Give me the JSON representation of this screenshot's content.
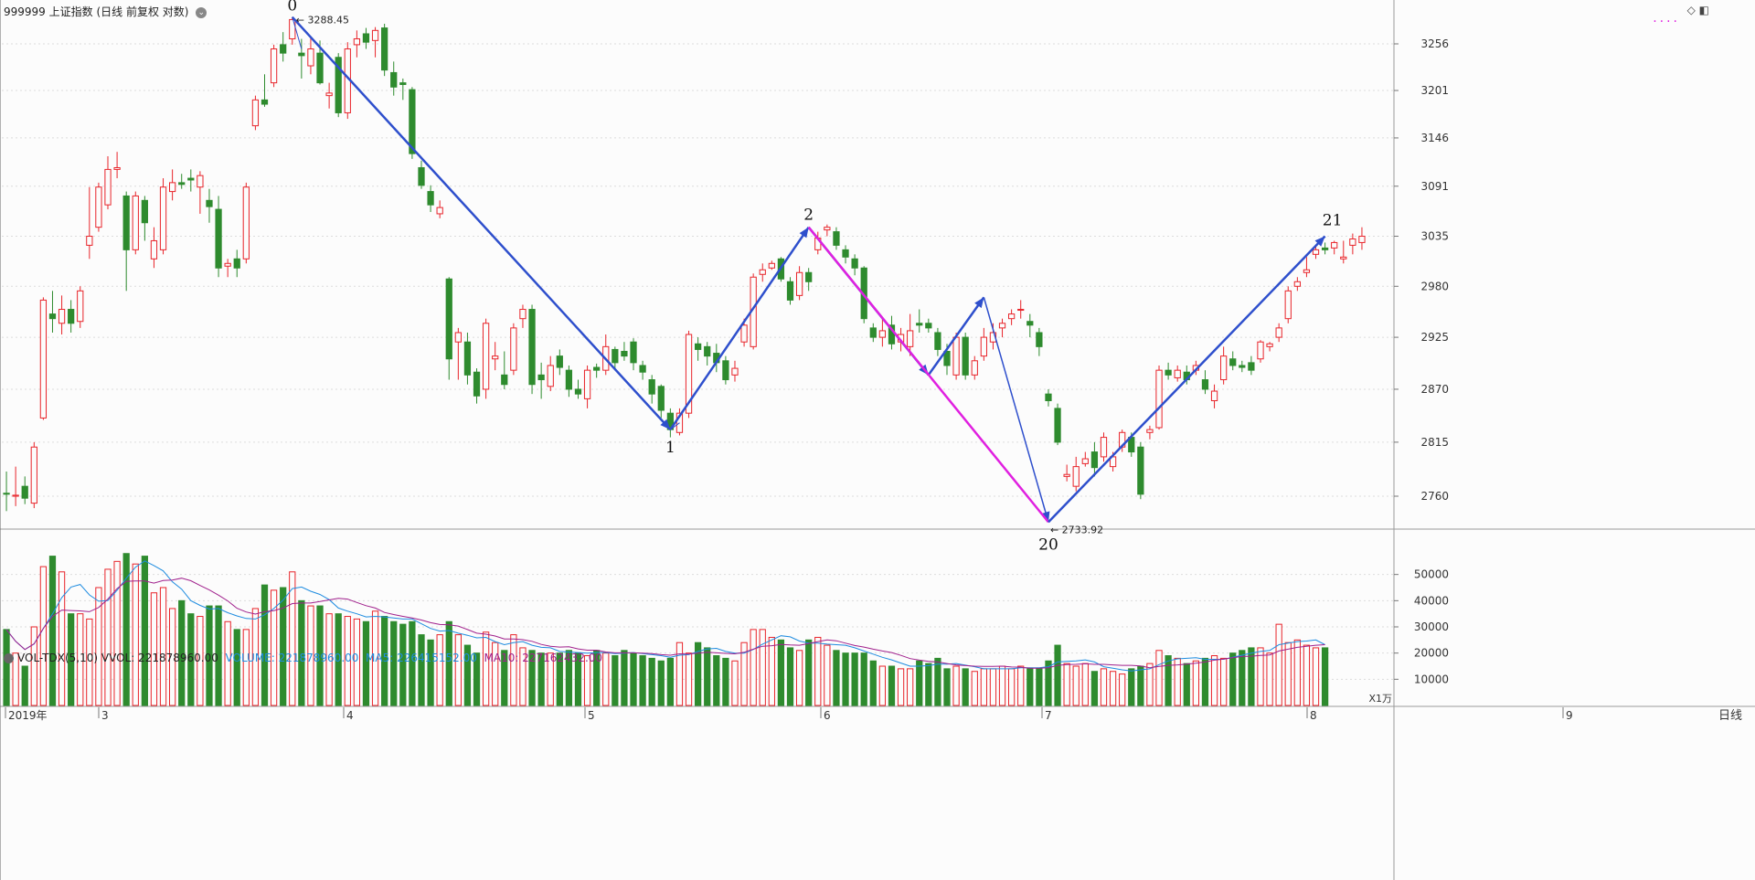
{
  "title": {
    "code": "999999",
    "name": "上证指数",
    "mode": "(日线 前复权 对数)",
    "icon": "settings-circle-icon"
  },
  "top_right_icons": [
    "diamond-icon",
    "panel-toggle-icon"
  ],
  "price_axis": {
    "ticks": [
      "3256",
      "3201",
      "3146",
      "3091",
      "3035",
      "2980",
      "2925",
      "2870",
      "2815",
      "2760"
    ]
  },
  "date_axis": {
    "labels": [
      "2019年",
      "3",
      "4",
      "5",
      "6",
      "7",
      "8",
      "9"
    ],
    "right_label": "日线"
  },
  "volume_panel": {
    "indicator": "VOL-TDX(5,10)",
    "vvol_label": "VVOL: 221878960.00",
    "volume_label": "VOLUME: 221878960.00",
    "ma5_label": "MA5: 226415152.00",
    "ma10_label": "MA10: 227162432.00",
    "unit": "X1万",
    "ticks": [
      "50000",
      "40000",
      "30000",
      "20000",
      "10000"
    ],
    "colors": {
      "volume": "#1e8ce0",
      "ma5": "#1e8ce0",
      "ma10": "#a0208c"
    }
  },
  "annotations": {
    "wave_labels": [
      "0",
      "1",
      "2",
      "20",
      "21"
    ],
    "high_price": "3288.45",
    "low_price": "2733.92"
  },
  "colors": {
    "up": "#e8242a",
    "down": "#2e8b2e",
    "wave_line": "#2e4fcc",
    "magenta_line": "#e020e0",
    "ma10_line": "#a0208c",
    "ma5_line": "#1e8ce0",
    "grid": "#dcdcdc",
    "axis_text": "#333333"
  },
  "chart_data": {
    "type": "candlestick",
    "title": "999999 上证指数 (日线 前复权 对数)",
    "price_range": [
      2730,
      3290
    ],
    "volume_range": [
      0,
      60000
    ],
    "candles": [
      [
        2763,
        2762,
        2785,
        2745
      ],
      [
        2760,
        2761,
        2790,
        2750
      ],
      [
        2770,
        2758,
        2780,
        2752
      ],
      [
        2753,
        2810,
        2815,
        2748
      ],
      [
        2840,
        2965,
        2968,
        2838
      ],
      [
        2950,
        2945,
        2975,
        2930
      ],
      [
        2940,
        2955,
        2970,
        2928
      ],
      [
        2955,
        2940,
        2965,
        2930
      ],
      [
        2942,
        2975,
        2980,
        2935
      ],
      [
        3025,
        3035,
        3090,
        3010
      ],
      [
        3045,
        3090,
        3095,
        3040
      ],
      [
        3070,
        3110,
        3125,
        3065
      ],
      [
        3110,
        3112,
        3130,
        3100
      ],
      [
        3080,
        3020,
        3085,
        2975
      ],
      [
        3020,
        3080,
        3085,
        3015
      ],
      [
        3075,
        3050,
        3080,
        3030
      ],
      [
        3010,
        3030,
        3045,
        3000
      ],
      [
        3020,
        3090,
        3100,
        3015
      ],
      [
        3085,
        3095,
        3110,
        3075
      ],
      [
        3095,
        3093,
        3105,
        3088
      ],
      [
        3100,
        3098,
        3110,
        3085
      ],
      [
        3090,
        3103,
        3108,
        3060
      ],
      [
        3075,
        3068,
        3088,
        3050
      ],
      [
        3065,
        3000,
        3080,
        2990
      ],
      [
        3002,
        3005,
        3010,
        2990
      ],
      [
        3010,
        3000,
        3020,
        2990
      ],
      [
        3010,
        3090,
        3095,
        3005
      ],
      [
        3160,
        3190,
        3195,
        3155
      ],
      [
        3190,
        3185,
        3220,
        3182
      ],
      [
        3210,
        3250,
        3255,
        3205
      ],
      [
        3255,
        3245,
        3270,
        3235
      ],
      [
        3262,
        3285,
        3288,
        3255
      ],
      [
        3245,
        3242,
        3262,
        3215
      ],
      [
        3230,
        3250,
        3265,
        3220
      ],
      [
        3245,
        3210,
        3260,
        3208
      ],
      [
        3195,
        3198,
        3210,
        3180
      ],
      [
        3240,
        3175,
        3245,
        3170
      ],
      [
        3175,
        3250,
        3258,
        3168
      ],
      [
        3255,
        3262,
        3272,
        3240
      ],
      [
        3268,
        3258,
        3275,
        3250
      ],
      [
        3260,
        3272,
        3276,
        3240
      ],
      [
        3275,
        3225,
        3280,
        3218
      ],
      [
        3222,
        3205,
        3235,
        3195
      ],
      [
        3210,
        3208,
        3215,
        3190
      ],
      [
        3202,
        3128,
        3205,
        3122
      ],
      [
        3112,
        3092,
        3120,
        3088
      ],
      [
        3085,
        3070,
        3092,
        3062
      ],
      [
        3060,
        3067,
        3075,
        3055
      ],
      [
        2988,
        2902,
        2990,
        2880
      ],
      [
        2920,
        2930,
        2935,
        2880
      ],
      [
        2920,
        2885,
        2930,
        2875
      ],
      [
        2888,
        2863,
        2892,
        2855
      ],
      [
        2870,
        2940,
        2945,
        2860
      ],
      [
        2902,
        2905,
        2920,
        2890
      ],
      [
        2885,
        2875,
        2910,
        2870
      ],
      [
        2890,
        2935,
        2940,
        2885
      ],
      [
        2945,
        2955,
        2960,
        2935
      ],
      [
        2955,
        2875,
        2960,
        2865
      ],
      [
        2885,
        2880,
        2898,
        2860
      ],
      [
        2873,
        2895,
        2905,
        2868
      ],
      [
        2905,
        2893,
        2912,
        2885
      ],
      [
        2890,
        2870,
        2895,
        2862
      ],
      [
        2870,
        2865,
        2880,
        2860
      ],
      [
        2860,
        2890,
        2895,
        2850
      ],
      [
        2893,
        2890,
        2897,
        2882
      ],
      [
        2890,
        2915,
        2928,
        2885
      ],
      [
        2912,
        2898,
        2915,
        2890
      ],
      [
        2910,
        2905,
        2920,
        2900
      ],
      [
        2920,
        2898,
        2924,
        2890
      ],
      [
        2895,
        2888,
        2900,
        2880
      ],
      [
        2880,
        2865,
        2885,
        2855
      ],
      [
        2873,
        2848,
        2875,
        2840
      ],
      [
        2845,
        2828,
        2850,
        2820
      ],
      [
        2825,
        2845,
        2850,
        2822
      ],
      [
        2845,
        2928,
        2932,
        2840
      ],
      [
        2918,
        2912,
        2925,
        2900
      ],
      [
        2915,
        2905,
        2920,
        2895
      ],
      [
        2908,
        2898,
        2918,
        2888
      ],
      [
        2900,
        2880,
        2905,
        2875
      ],
      [
        2885,
        2892,
        2900,
        2878
      ],
      [
        2920,
        2938,
        2945,
        2915
      ],
      [
        2915,
        2990,
        2994,
        2912
      ],
      [
        2993,
        2998,
        3005,
        2985
      ],
      [
        3000,
        3005,
        3008,
        2998
      ],
      [
        3010,
        2988,
        3012,
        2985
      ],
      [
        2985,
        2965,
        2990,
        2960
      ],
      [
        2970,
        2995,
        3002,
        2965
      ],
      [
        2995,
        2985,
        3000,
        2975
      ],
      [
        3020,
        3033,
        3040,
        3015
      ],
      [
        3042,
        3045,
        3048,
        3035
      ],
      [
        3040,
        3025,
        3045,
        3020
      ],
      [
        3020,
        3012,
        3025,
        3005
      ],
      [
        3010,
        3000,
        3015,
        2992
      ],
      [
        3000,
        2945,
        3002,
        2940
      ],
      [
        2935,
        2925,
        2940,
        2920
      ],
      [
        2925,
        2932,
        2945,
        2915
      ],
      [
        2938,
        2918,
        2948,
        2912
      ],
      [
        2920,
        2928,
        2935,
        2910
      ],
      [
        2915,
        2932,
        2950,
        2905
      ],
      [
        2940,
        2938,
        2955,
        2930
      ],
      [
        2940,
        2935,
        2945,
        2930
      ],
      [
        2930,
        2912,
        2935,
        2905
      ],
      [
        2910,
        2895,
        2918,
        2885
      ],
      [
        2885,
        2925,
        2930,
        2880
      ],
      [
        2925,
        2885,
        2930,
        2880
      ],
      [
        2885,
        2900,
        2905,
        2880
      ],
      [
        2905,
        2925,
        2935,
        2900
      ],
      [
        2920,
        2930,
        2940,
        2912
      ],
      [
        2935,
        2940,
        2945,
        2925
      ],
      [
        2945,
        2950,
        2955,
        2938
      ],
      [
        2955,
        2955,
        2965,
        2945
      ],
      [
        2942,
        2938,
        2950,
        2925
      ],
      [
        2930,
        2915,
        2935,
        2905
      ],
      [
        2865,
        2858,
        2870,
        2852
      ],
      [
        2850,
        2815,
        2855,
        2812
      ],
      [
        2780,
        2782,
        2792,
        2775
      ],
      [
        2770,
        2790,
        2800,
        2765
      ],
      [
        2793,
        2798,
        2805,
        2790
      ],
      [
        2805,
        2789,
        2815,
        2780
      ],
      [
        2800,
        2820,
        2825,
        2795
      ],
      [
        2790,
        2800,
        2805,
        2785
      ],
      [
        2810,
        2825,
        2828,
        2805
      ],
      [
        2820,
        2805,
        2825,
        2800
      ],
      [
        2810,
        2762,
        2815,
        2757
      ],
      [
        2825,
        2828,
        2832,
        2818
      ],
      [
        2830,
        2890,
        2895,
        2828
      ],
      [
        2890,
        2885,
        2898,
        2880
      ],
      [
        2882,
        2890,
        2895,
        2878
      ],
      [
        2888,
        2880,
        2895,
        2875
      ],
      [
        2890,
        2895,
        2900,
        2885
      ],
      [
        2880,
        2870,
        2890,
        2865
      ],
      [
        2858,
        2868,
        2875,
        2850
      ],
      [
        2880,
        2905,
        2915,
        2875
      ],
      [
        2902,
        2895,
        2910,
        2890
      ],
      [
        2895,
        2893,
        2900,
        2888
      ],
      [
        2898,
        2890,
        2905,
        2885
      ],
      [
        2902,
        2920,
        2922,
        2898
      ],
      [
        2915,
        2918,
        2920,
        2910
      ],
      [
        2925,
        2935,
        2940,
        2920
      ],
      [
        2945,
        2975,
        2980,
        2940
      ],
      [
        2980,
        2985,
        2990,
        2975
      ],
      [
        2995,
        2998,
        3012,
        2990
      ],
      [
        3015,
        3020,
        3025,
        3010
      ],
      [
        3022,
        3020,
        3028,
        3015
      ],
      [
        3022,
        3028,
        3030,
        3015
      ],
      [
        3010,
        3012,
        3030,
        3005
      ],
      [
        3025,
        3032,
        3038,
        3015
      ],
      [
        3028,
        3035,
        3045,
        3020
      ]
    ],
    "volume": [
      29000,
      20000,
      15000,
      30000,
      53000,
      57000,
      51000,
      35000,
      35000,
      33000,
      45000,
      52000,
      55000,
      58000,
      54000,
      57000,
      43000,
      45000,
      37000,
      40000,
      35000,
      34000,
      38000,
      38000,
      32000,
      29000,
      29000,
      37000,
      46000,
      44000,
      45000,
      51000,
      40000,
      38000,
      38000,
      35000,
      35000,
      34000,
      33000,
      32000,
      36000,
      34000,
      32000,
      31000,
      32000,
      27000,
      25000,
      27000,
      32000,
      27000,
      23000,
      20000,
      28000,
      24000,
      21000,
      27000,
      22000,
      21000,
      20000,
      20000,
      20000,
      21000,
      20000,
      19000,
      21000,
      20000,
      19000,
      21000,
      20000,
      19000,
      18000,
      17000,
      18000,
      24000,
      20000,
      24000,
      22000,
      19000,
      18000,
      17000,
      24000,
      29000,
      29000,
      26000,
      25000,
      22000,
      21000,
      25000,
      26000,
      23000,
      21000,
      20000,
      20000,
      20000,
      17000,
      15000,
      15000,
      14000,
      14000,
      17000,
      16000,
      18000,
      14000,
      15000,
      14000,
      13000,
      14000,
      14000,
      15000,
      14000,
      15000,
      14000,
      14000,
      17000,
      23000,
      16000,
      15000,
      16000,
      13000,
      14000,
      13000,
      12000,
      14000,
      15000,
      16000,
      21000,
      19000,
      18000,
      16000,
      17000,
      18000,
      19000,
      18000,
      20000,
      21000,
      22000,
      22000,
      20000,
      31000,
      24000,
      25000,
      23000,
      22000,
      22000
    ]
  }
}
